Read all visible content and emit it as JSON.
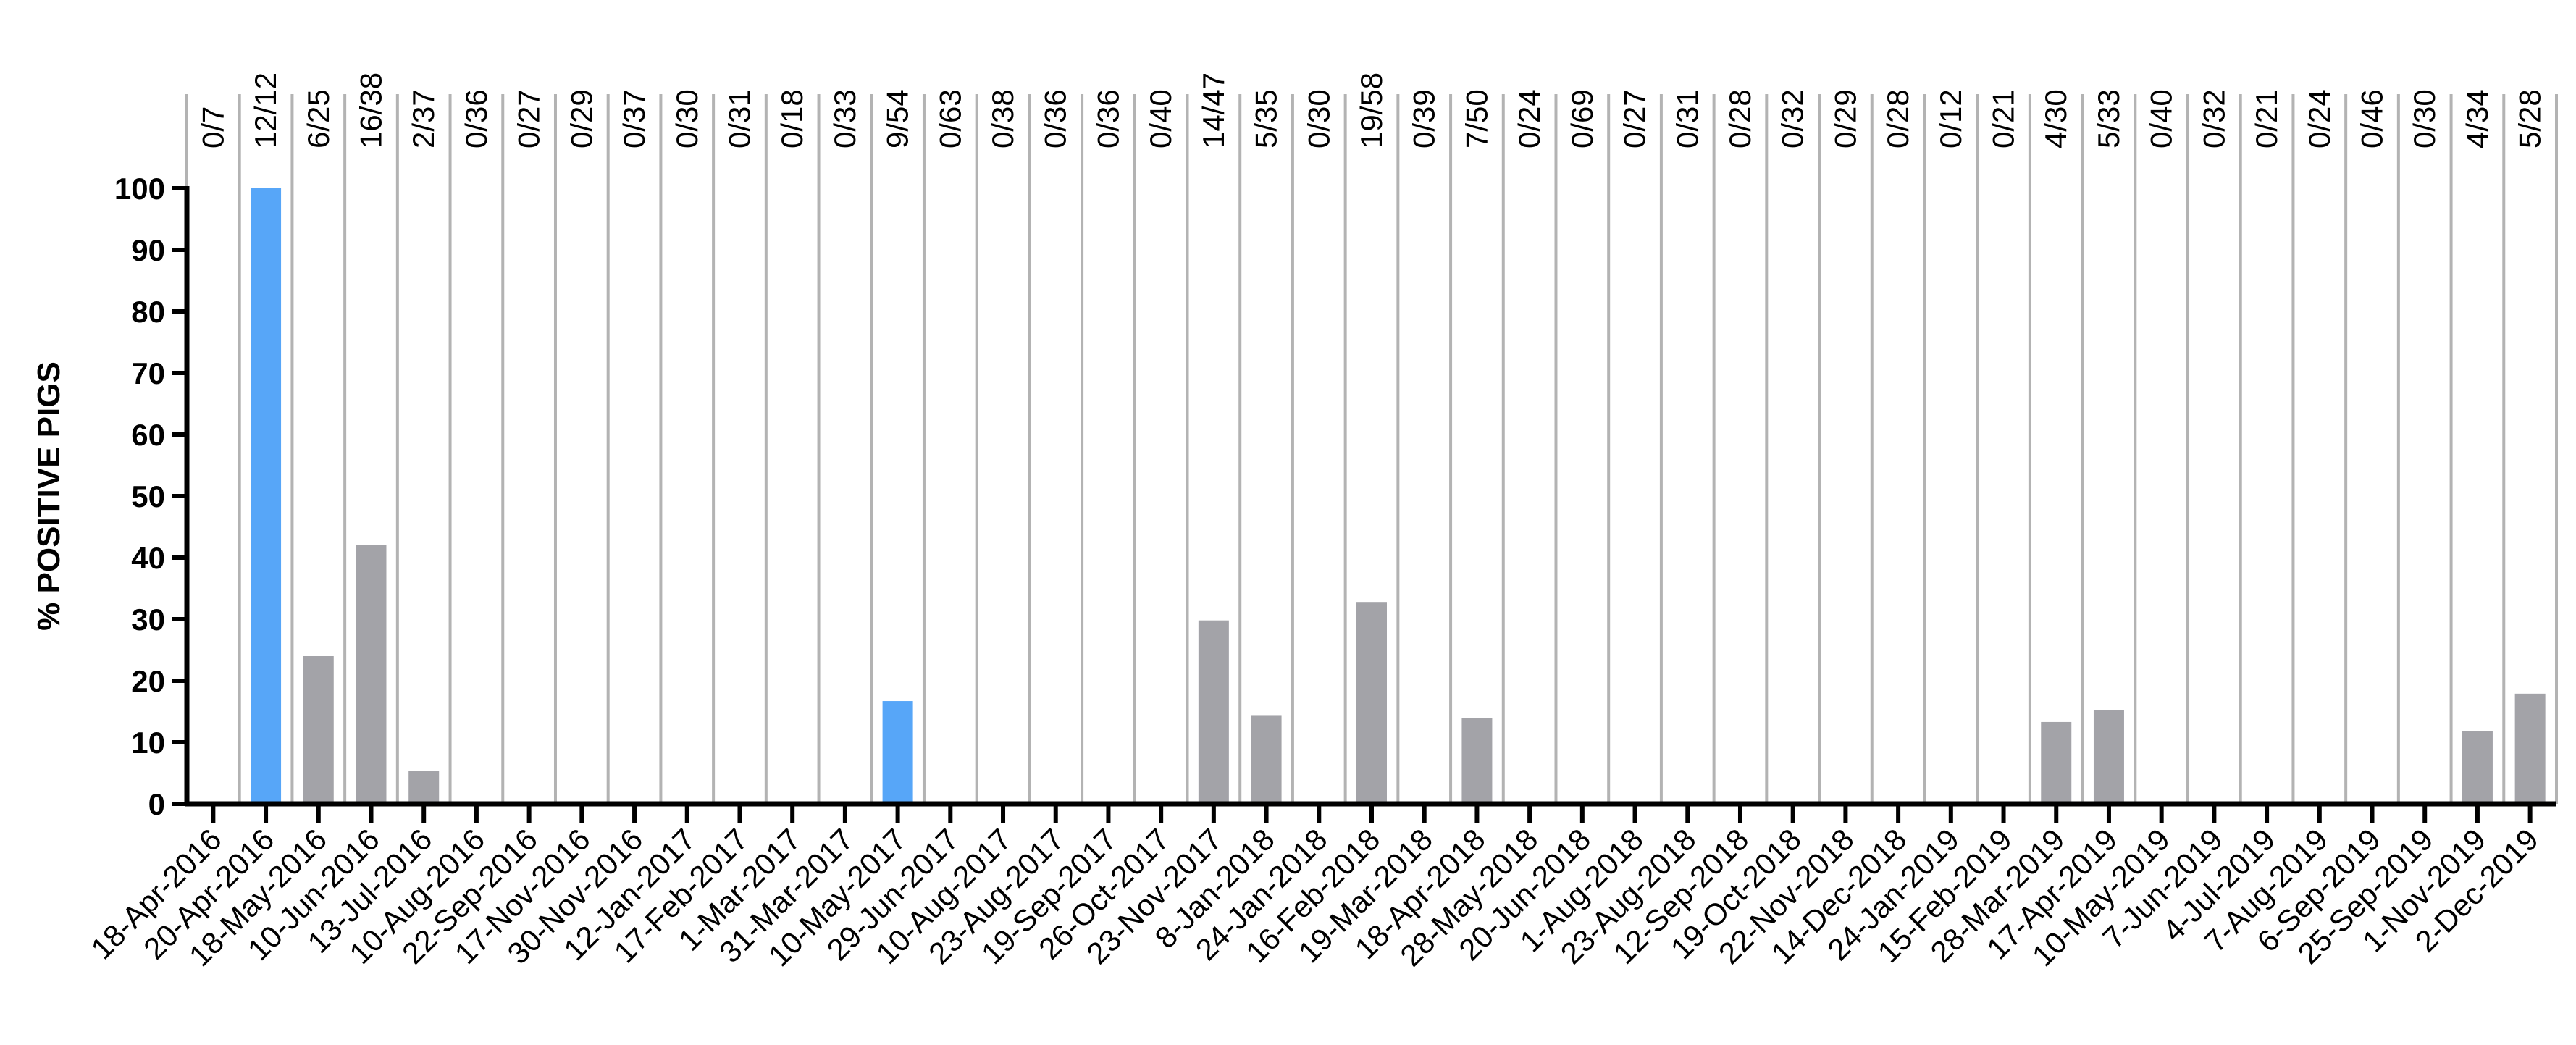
{
  "chart_data": {
    "type": "bar",
    "ylabel": "% POSITIVE PIGS",
    "ylim": [
      0,
      100
    ],
    "yticks": [
      0,
      10,
      20,
      30,
      40,
      50,
      60,
      70,
      80,
      90,
      100
    ],
    "grid": "vertical separators between categories",
    "colors": {
      "default": "#a3a3a8",
      "highlight": "#57a6f8",
      "separator": "#b3b3b3",
      "axis": "#000000"
    },
    "categories": [
      "18-Apr-2016",
      "20-Apr-2016",
      "18-May-2016",
      "10-Jun-2016",
      "13-Jul-2016",
      "10-Aug-2016",
      "22-Sep-2016",
      "17-Nov-2016",
      "30-Nov-2016",
      "12-Jan-2017",
      "17-Feb-2017",
      "1-Mar-2017",
      "31-Mar-2017",
      "10-May-2017",
      "29-Jun-2017",
      "10-Aug-2017",
      "23-Aug-2017",
      "19-Sep-2017",
      "26-Oct-2017",
      "23-Nov-2017",
      "8-Jan-2018",
      "24-Jan-2018",
      "16-Feb-2018",
      "19-Mar-2018",
      "18-Apr-2018",
      "28-May-2018",
      "20-Jun-2018",
      "1-Aug-2018",
      "23-Aug-2018",
      "12-Sep-2018",
      "19-Oct-2018",
      "22-Nov-2018",
      "14-Dec-2018",
      "24-Jan-2019",
      "15-Feb-2019",
      "28-Mar-2019",
      "17-Apr-2019",
      "10-May-2019",
      "7-Jun-2019",
      "4-Jul-2019",
      "7-Aug-2019",
      "6-Sep-2019",
      "25-Sep-2019",
      "1-Nov-2019",
      "2-Dec-2019"
    ],
    "ratios": [
      "0/7",
      "12/12",
      "6/25",
      "16/38",
      "2/37",
      "0/36",
      "0/27",
      "0/29",
      "0/37",
      "0/30",
      "0/31",
      "0/18",
      "0/33",
      "9/54",
      "0/63",
      "0/38",
      "0/36",
      "0/36",
      "0/40",
      "14/47",
      "5/35",
      "0/30",
      "19/58",
      "0/39",
      "7/50",
      "0/24",
      "0/69",
      "0/27",
      "0/31",
      "0/28",
      "0/32",
      "0/29",
      "0/28",
      "0/12",
      "0/21",
      "4/30",
      "5/33",
      "0/40",
      "0/32",
      "0/21",
      "0/24",
      "0/46",
      "0/30",
      "4/34",
      "5/28"
    ],
    "values": [
      0,
      100,
      24,
      42.1,
      5.4,
      0,
      0,
      0,
      0,
      0,
      0,
      0,
      0,
      16.7,
      0,
      0,
      0,
      0,
      0,
      29.8,
      14.3,
      0,
      32.8,
      0,
      14,
      0,
      0,
      0,
      0,
      0,
      0,
      0,
      0,
      0,
      0,
      13.3,
      15.2,
      0,
      0,
      0,
      0,
      0,
      0,
      11.8,
      17.9
    ],
    "highlighted": [
      1,
      13
    ]
  }
}
